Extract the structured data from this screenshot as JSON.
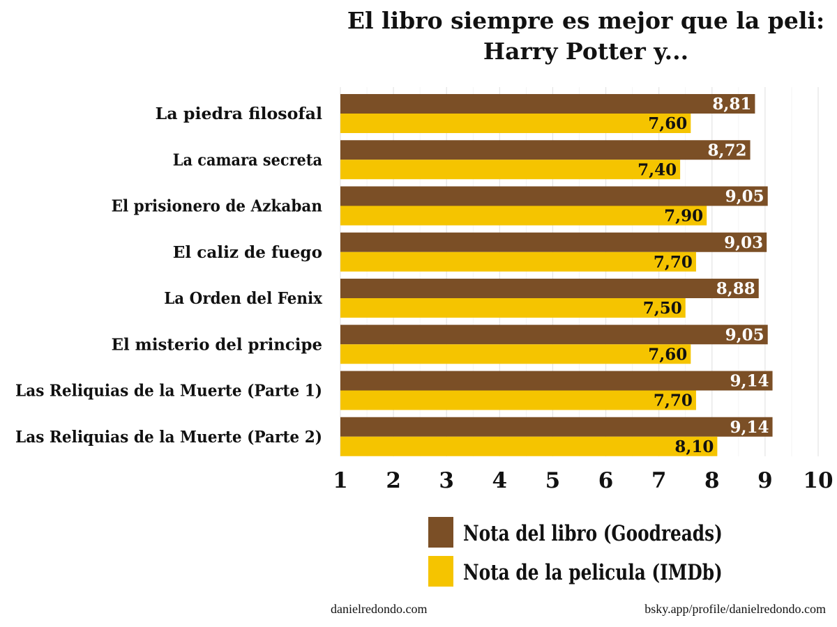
{
  "chart_data": {
    "type": "bar",
    "orientation": "horizontal",
    "title": [
      "El libro siempre es mejor que la peli:",
      "Harry Potter y..."
    ],
    "categories": [
      "La piedra filosofal",
      "La camara secreta",
      "El prisionero de Azkaban",
      "El caliz de fuego",
      "La Orden del Fenix",
      "El misterio del principe",
      "Las Reliquias de la Muerte (Parte 1)",
      "Las Reliquias de la Muerte (Parte 2)"
    ],
    "series": [
      {
        "name": "Nota del libro (Goodreads)",
        "color": "#7b4f26",
        "values": [
          8.81,
          8.72,
          9.05,
          9.03,
          8.88,
          9.05,
          9.14,
          9.14
        ],
        "labels": [
          "8,81",
          "8,72",
          "9,05",
          "9,03",
          "8,88",
          "9,05",
          "9,14",
          "9,14"
        ]
      },
      {
        "name": "Nota de la pelicula (IMDb)",
        "color": "#f5c400",
        "values": [
          7.6,
          7.4,
          7.9,
          7.7,
          7.5,
          7.6,
          7.7,
          8.1
        ],
        "labels": [
          "7,60",
          "7,40",
          "7,90",
          "7,70",
          "7,50",
          "7,60",
          "7,70",
          "8,10"
        ]
      }
    ],
    "xlim": [
      1,
      10
    ],
    "xticks": [
      "1",
      "2",
      "3",
      "4",
      "5",
      "6",
      "7",
      "8",
      "9",
      "10"
    ],
    "grid": true,
    "legend_position": "bottom"
  },
  "footer": {
    "left": "danielredondo.com",
    "right": "bsky.app/profile/danielredondo.com"
  }
}
